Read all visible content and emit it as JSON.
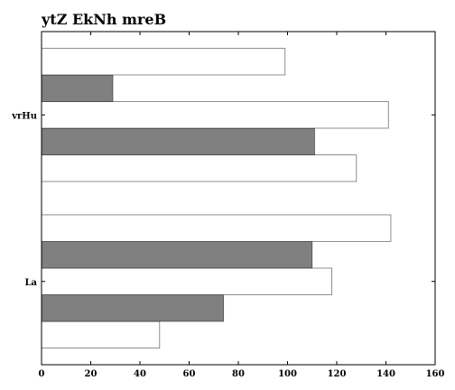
{
  "chart_data": {
    "type": "bar",
    "orientation": "horizontal",
    "title": "ytZ EkNh mreB",
    "xlabel": "",
    "ylabel": "",
    "xlim": [
      0,
      160
    ],
    "x_ticks": [
      0,
      20,
      40,
      60,
      80,
      100,
      120,
      140,
      160
    ],
    "categories": [
      "La",
      "vrHu"
    ],
    "grid": false,
    "legend": "none",
    "series": [
      {
        "color": "#ffffff",
        "values": [
          48,
          128
        ]
      },
      {
        "color": "#808080",
        "values": [
          74,
          111
        ]
      },
      {
        "color": "#ffffff",
        "values": [
          118,
          141
        ]
      },
      {
        "color": "#808080",
        "values": [
          110,
          29
        ]
      },
      {
        "color": "#ffffff",
        "values": [
          142,
          99
        ]
      }
    ]
  }
}
